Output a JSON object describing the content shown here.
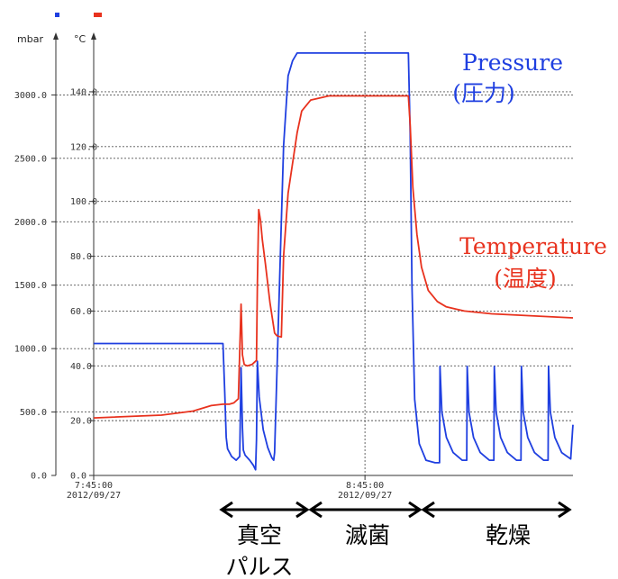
{
  "chart_data": {
    "type": "line",
    "left_axis": {
      "unit": "mbar",
      "range": [
        0,
        3500
      ],
      "ticks": [
        "0.0",
        "500.0",
        "1000.0",
        "1500.0",
        "2000.0",
        "2500.0",
        "3000.0"
      ],
      "tick_values": [
        0,
        500,
        1000,
        1500,
        2000,
        2500,
        3000
      ]
    },
    "right_axis": {
      "unit": "°C",
      "range": [
        0,
        162
      ],
      "ticks": [
        "0.0",
        "20.0",
        "40.0",
        "60.0",
        "80.0",
        "100.0",
        "120.0",
        "140.0"
      ],
      "tick_values": [
        0,
        20,
        40,
        60,
        80,
        100,
        120,
        140
      ]
    },
    "x_axis": {
      "range_minutes": [
        0,
        106
      ],
      "ticks": [
        {
          "time": "7:45:00",
          "date": "2012/09/27",
          "minute": 0
        },
        {
          "time": "8:45:00",
          "date": "2012/09/27",
          "minute": 60
        }
      ]
    },
    "grid": true,
    "series": [
      {
        "name": "Pressure",
        "color": "#1f3fe0",
        "x_minutes": [
          0,
          28.6,
          29.0,
          29.3,
          29.6,
          30.5,
          31.5,
          32.3,
          32.6,
          32.9,
          33.1,
          33.5,
          34.5,
          35.3,
          35.8,
          36.0,
          36.2,
          36.6,
          37.5,
          38.5,
          39.4,
          39.8,
          40.0,
          41.0,
          42.0,
          43.0,
          44.0,
          45.0,
          50.0,
          56.0,
          58.0,
          60.0,
          65.0,
          69.6,
          70.0,
          70.4,
          71.0,
          72.0,
          73.5,
          75.5,
          76.5,
          76.6,
          77.0,
          78.0,
          79.5,
          81.5,
          82.5,
          82.6,
          83.0,
          84.0,
          85.5,
          87.5,
          88.5,
          88.6,
          89.0,
          90.0,
          91.5,
          93.5,
          94.5,
          94.6,
          95.0,
          96.0,
          97.5,
          99.5,
          100.5,
          100.6,
          101.0,
          102.0,
          103.5,
          105.5,
          105.9,
          106.0
        ],
        "y_values": [
          1040,
          1040,
          650,
          300,
          210,
          150,
          120,
          150,
          850,
          380,
          200,
          160,
          120,
          80,
          45,
          280,
          900,
          620,
          360,
          220,
          140,
          120,
          180,
          1400,
          2600,
          3150,
          3270,
          3330,
          3330,
          3330,
          3330,
          3330,
          3330,
          3330,
          2700,
          1500,
          600,
          250,
          120,
          100,
          100,
          860,
          500,
          300,
          180,
          120,
          120,
          860,
          500,
          300,
          180,
          120,
          120,
          860,
          500,
          300,
          180,
          120,
          120,
          860,
          500,
          300,
          180,
          120,
          120,
          860,
          500,
          300,
          180,
          130,
          350,
          400
        ]
      },
      {
        "name": "Temperature",
        "color": "#e8321e",
        "x_minutes": [
          0,
          15.0,
          22.0,
          26.0,
          28.6,
          30.0,
          31.0,
          32.0,
          32.6,
          32.9,
          33.3,
          34.0,
          35.0,
          36.0,
          36.2,
          36.5,
          36.9,
          37.3,
          38.0,
          39.0,
          40.0,
          40.5,
          41.5,
          42.0,
          43.0,
          44.0,
          45.0,
          46.0,
          48.0,
          52.0,
          58.0,
          64.0,
          69.6,
          70.0,
          70.6,
          71.5,
          72.5,
          74.0,
          76.0,
          78.0,
          82.0,
          88.0,
          94.0,
          100.0,
          106.0
        ],
        "y_values": [
          21.0,
          22.0,
          23.5,
          25.5,
          26.0,
          26.0,
          26.5,
          28.0,
          62.5,
          44.0,
          40.5,
          40.0,
          40.5,
          42.0,
          70.0,
          97.0,
          93.0,
          86.0,
          77.0,
          63.0,
          52.0,
          51.0,
          50.5,
          80.0,
          103.0,
          114.0,
          125.0,
          133.0,
          137.0,
          138.5,
          138.5,
          138.5,
          138.5,
          128.0,
          105.0,
          88.0,
          76.0,
          67.5,
          63.5,
          61.5,
          60.0,
          59.0,
          58.5,
          58.0,
          57.5
        ]
      }
    ],
    "annotations": [
      {
        "line1": "Pressure",
        "line2": "(圧力)",
        "color": "#1f3fe0"
      },
      {
        "line1": "Temperature",
        "line2": "(温度)",
        "color": "#e8321e"
      }
    ],
    "phases": [
      {
        "line1": "真空",
        "line2": "パルス"
      },
      {
        "line1": "滅菌",
        "line2": ""
      },
      {
        "line1": "乾燥",
        "line2": ""
      }
    ]
  }
}
